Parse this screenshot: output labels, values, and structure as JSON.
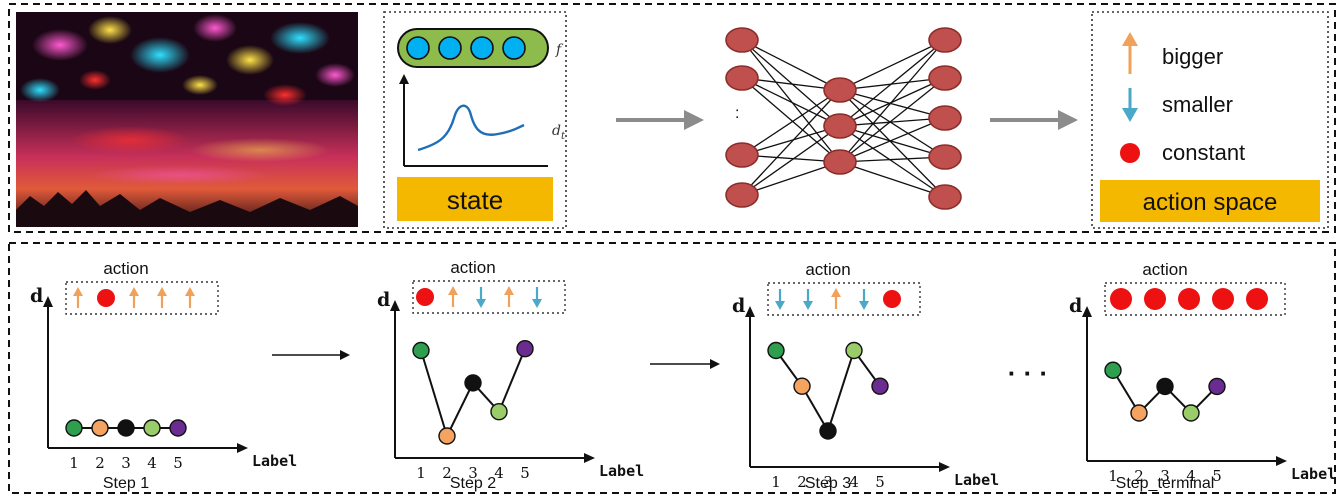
{
  "top": {
    "state_label": "state",
    "feature_symbol": "f",
    "distribution_symbol": "d",
    "distribution_subscript": "t",
    "network_ellipsis": ":",
    "legend": [
      {
        "symbol": "up-arrow-icon",
        "label": "bigger"
      },
      {
        "symbol": "down-arrow-icon",
        "label": "smaller"
      },
      {
        "symbol": "red-dot-icon",
        "label": "constant"
      }
    ],
    "action_space_label": "action space"
  },
  "bottom": {
    "axis_y_label": "d",
    "axis_x_label": "Label",
    "action_label": "action",
    "ellipsis": "· · ·",
    "x_ticks": [
      "1",
      "2",
      "3",
      "4",
      "5"
    ],
    "steps": [
      {
        "caption": "Step 1",
        "actions": [
          "up",
          "const",
          "up",
          "up",
          "up"
        ],
        "points": [
          {
            "level": 0.0,
            "color": "#2e9e4f"
          },
          {
            "level": 0.0,
            "color": "#f4a460"
          },
          {
            "level": 0.0,
            "color": "#111111"
          },
          {
            "level": 0.0,
            "color": "#9acd6a"
          },
          {
            "level": 0.0,
            "color": "#6a2c91"
          }
        ]
      },
      {
        "caption": "Step 2",
        "actions": [
          "const",
          "up",
          "down",
          "up",
          "down"
        ],
        "points": [
          {
            "level": 0.95,
            "color": "#2e9e4f"
          },
          {
            "level": 0.0,
            "color": "#f4a460"
          },
          {
            "level": 0.59,
            "color": "#111111"
          },
          {
            "level": 0.27,
            "color": "#9acd6a"
          },
          {
            "level": 0.97,
            "color": "#6a2c91"
          }
        ]
      },
      {
        "caption": "Step 3",
        "actions": [
          "down",
          "down",
          "up",
          "down",
          "const"
        ],
        "points": [
          {
            "level": 0.97,
            "color": "#2e9e4f"
          },
          {
            "level": 0.54,
            "color": "#f4a460"
          },
          {
            "level": 0.0,
            "color": "#111111"
          },
          {
            "level": 0.97,
            "color": "#9acd6a"
          },
          {
            "level": 0.54,
            "color": "#6a2c91"
          }
        ]
      },
      {
        "caption": "Step_terminal",
        "actions": [
          "const",
          "const",
          "const",
          "const",
          "const"
        ],
        "points": [
          {
            "level": 0.95,
            "color": "#2e9e4f"
          },
          {
            "level": 0.0,
            "color": "#f4a460"
          },
          {
            "level": 0.59,
            "color": "#111111"
          },
          {
            "level": 0.0,
            "color": "#9acd6a"
          },
          {
            "level": 0.59,
            "color": "#6a2c91"
          }
        ]
      }
    ]
  },
  "colors": {
    "node_fill": "#c0504d",
    "node_stroke": "#8b2e2b",
    "state_bar": "#f5b800",
    "feature_capsule": "#8dbb4c",
    "feature_dot": "#00b0f0",
    "curve": "#1f6fb8",
    "arrow_gray": "#8c8c8c",
    "up_arrow": "#f0a25a",
    "down_arrow": "#4aa8c8",
    "const_dot": "#ee1111"
  }
}
